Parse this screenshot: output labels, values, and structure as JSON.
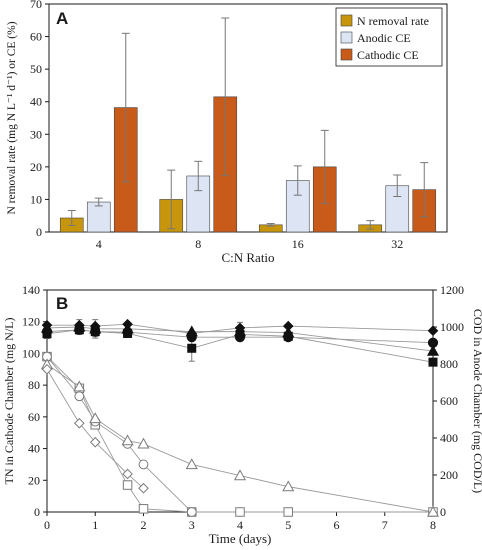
{
  "chart_data": [
    {
      "type": "bar",
      "panel": "A",
      "categories": [
        "4",
        "8",
        "16",
        "32"
      ],
      "xlabel": "C:N Ratio",
      "ylabel": "N removal rate (mg N L⁻¹ d⁻¹) or CE (%)",
      "ylim": [
        0,
        70
      ],
      "yticks": [
        0,
        10,
        20,
        30,
        40,
        50,
        60,
        70
      ],
      "legend_position": "top-right",
      "series": [
        {
          "name": "N removal rate",
          "color": "#c8960c",
          "values": [
            4.3,
            10.0,
            2.2,
            2.2
          ],
          "errors": [
            2.3,
            9.0,
            0.4,
            1.3
          ]
        },
        {
          "name": "Anodic CE",
          "color": "#dde4f3",
          "values": [
            9.2,
            17.2,
            15.8,
            14.2
          ],
          "errors": [
            1.2,
            4.5,
            4.5,
            3.3
          ]
        },
        {
          "name": "Cathodic CE",
          "color": "#c85a1a",
          "values": [
            38.2,
            41.5,
            20.0,
            13.0
          ],
          "errors": [
            22.8,
            24.2,
            11.2,
            8.3
          ]
        }
      ]
    },
    {
      "type": "scatter",
      "panel": "B",
      "xlabel": "Time (days)",
      "ylabel": "TN in Cathode Chamber (mg N/L)",
      "y2label": "COD in Anode Chamber (mg COD/L)",
      "xlim": [
        0,
        8
      ],
      "xticks": [
        0,
        1,
        2,
        3,
        4,
        5,
        6,
        7,
        8
      ],
      "ylim": [
        0,
        140
      ],
      "yticks": [
        0,
        20,
        40,
        60,
        80,
        100,
        120,
        140
      ],
      "y2lim": [
        0,
        1200
      ],
      "y2ticks": [
        0,
        200,
        400,
        600,
        800,
        1000,
        1200
      ],
      "grid": false,
      "series": [
        {
          "axis": "left",
          "marker": "square",
          "filled": false,
          "x": [
            0,
            0.67,
            1,
            1.67,
            2,
            3,
            4,
            5,
            8
          ],
          "y": [
            98,
            78,
            55,
            17,
            2,
            0,
            0,
            0,
            0
          ]
        },
        {
          "axis": "left",
          "marker": "circle",
          "filled": false,
          "x": [
            0,
            0.67,
            1,
            1.67,
            2,
            3
          ],
          "y": [
            98,
            73,
            57,
            43,
            30,
            0
          ]
        },
        {
          "axis": "left",
          "marker": "triangle",
          "filled": false,
          "x": [
            0,
            0.67,
            1,
            1.67,
            2,
            3,
            4,
            5,
            8
          ],
          "y": [
            93,
            79,
            59,
            45,
            43,
            30,
            23,
            16,
            0
          ]
        },
        {
          "axis": "left",
          "marker": "diamond",
          "filled": false,
          "x": [
            0,
            0.67,
            1,
            1.67,
            2
          ],
          "y": [
            90,
            56,
            44,
            24,
            15
          ]
        },
        {
          "axis": "right",
          "marker": "square",
          "filled": true,
          "x": [
            0,
            0.67,
            1,
            1.67,
            3,
            4,
            5,
            8
          ],
          "y": [
            963,
            985,
            975,
            965,
            885,
            960,
            950,
            810
          ],
          "errors": [
            25,
            25,
            25,
            0,
            70,
            35,
            0,
            0
          ]
        },
        {
          "axis": "right",
          "marker": "circle",
          "filled": true,
          "x": [
            0,
            0.67,
            1,
            1.67,
            3,
            4,
            5,
            8
          ],
          "y": [
            975,
            985,
            975,
            972,
            945,
            945,
            945,
            915
          ],
          "errors": [
            0,
            0,
            0,
            0,
            0,
            0,
            0,
            0
          ]
        },
        {
          "axis": "right",
          "marker": "triangle",
          "filled": true,
          "x": [
            0,
            0.67,
            1,
            1.67,
            3,
            4,
            5,
            8
          ],
          "y": [
            995,
            1000,
            990,
            990,
            975,
            975,
            970,
            870
          ],
          "errors": [
            0,
            0,
            50,
            0,
            0,
            0,
            0,
            0
          ]
        },
        {
          "axis": "right",
          "marker": "diamond",
          "filled": true,
          "x": [
            0,
            0.67,
            1,
            1.67,
            3,
            4,
            5,
            8
          ],
          "y": [
            1010,
            1010,
            1005,
            1015,
            965,
            995,
            1005,
            980
          ],
          "errors": [
            0,
            30,
            0,
            0,
            0,
            30,
            0,
            0
          ]
        }
      ]
    }
  ]
}
